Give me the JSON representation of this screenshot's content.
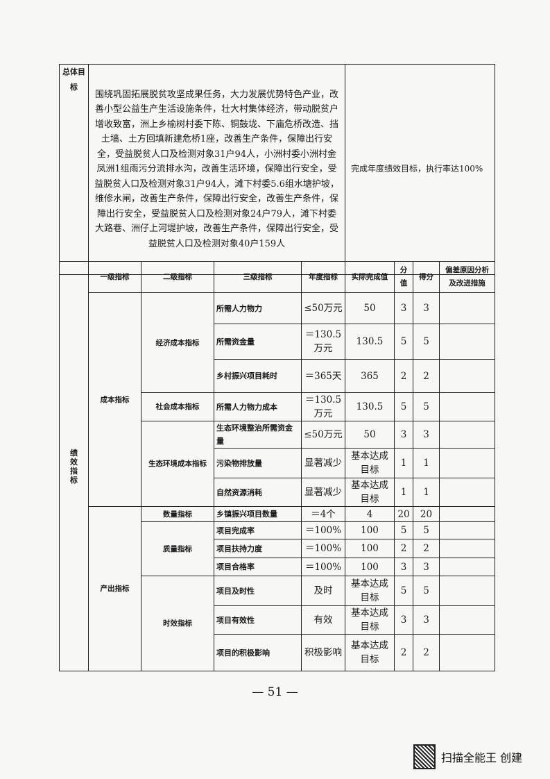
{
  "overall_goal": {
    "label": "总体目标",
    "text": "围绕巩固拓展脱贫攻坚成果任务，大力发展优势特色产业，改善小型公益生产生活设施条件，壮大村集体经济，带动脱贫户增收致富，洲上乡榆树村委下陈、铜鼓垅、下庙危桥改造、挡土墙、土方回填新建危桥1座，改善生产条件，保障出行安全，受益脱贫人口及检测对象31户94人，小洲村委小洲村金凤洲1组雨污分流排水沟，改善生活环境，保障出行安全，受益脱贫人口及检测对象31户94人，滩下村委5.6组水塘护坡，维修水闸，改善生产条件，保障出行安全，改善生产条件，保障出行安全，受益脱贫人口及检测对象24户79人，滩下村委大路巷、洲仔上河堤护坡，改善生产条件，保障出行安全，受益脱贫人口及检测对象40户159人",
    "annual_target": "完成年度绩效目标，执行率达100%"
  },
  "indicators": {
    "section_label": "绩效指标",
    "headers": [
      "一级指标",
      "二级指标",
      "三级指标",
      "年度指标",
      "实际完成值",
      "分值",
      "得分",
      "偏差原因分析及改进措施"
    ],
    "level1": [
      "成本指标",
      "产出指标"
    ],
    "level2": [
      "经济成本指标",
      "社会成本指标",
      "生态环境成本指标",
      "数量指标",
      "质量指标",
      "时效指标"
    ],
    "rows": [
      {
        "name": "所需人力物力",
        "target": "≤50万元",
        "actual": "50",
        "weight": "3",
        "score": "3"
      },
      {
        "name": "所需资金量",
        "target": "＝130.5万元",
        "actual": "130.5",
        "weight": "5",
        "score": "5"
      },
      {
        "name": "乡村振兴项目耗时",
        "target": "＝365天",
        "actual": "365",
        "weight": "2",
        "score": "2"
      },
      {
        "name": "所需人力物力成本",
        "target": "＝130.5万元",
        "actual": "130.5",
        "weight": "5",
        "score": "5"
      },
      {
        "name": "生态环境整治所需资金量",
        "target": "≤50万元",
        "actual": "50",
        "weight": "3",
        "score": "3"
      },
      {
        "name": "污染物排放量",
        "target": "显著减少",
        "actual": "基本达成目标",
        "weight": "1",
        "score": "1"
      },
      {
        "name": "自然资源消耗",
        "target": "显著减少",
        "actual": "基本达成目标",
        "weight": "1",
        "score": "1"
      },
      {
        "name": "乡镇振兴项目数量",
        "target": "＝4个",
        "actual": "4",
        "weight": "20",
        "score": "20"
      },
      {
        "name": "项目完成率",
        "target": "＝100%",
        "actual": "100",
        "weight": "5",
        "score": "5"
      },
      {
        "name": "项目扶持力度",
        "target": "＝100%",
        "actual": "100",
        "weight": "2",
        "score": "2"
      },
      {
        "name": "项目合格率",
        "target": "＝100%",
        "actual": "100",
        "weight": "3",
        "score": "3"
      },
      {
        "name": "项目及时性",
        "target": "及时",
        "actual": "基本达成目标",
        "weight": "5",
        "score": "5"
      },
      {
        "name": "项目有效性",
        "target": "有效",
        "actual": "基本达成目标",
        "weight": "3",
        "score": "3"
      },
      {
        "name": "项目的积极影响",
        "target": "积极影响",
        "actual": "基本达成目标",
        "weight": "2",
        "score": "2"
      }
    ]
  },
  "page_number": "— 51 —",
  "watermark": {
    "text": "扫描全能王 创建",
    "icon": "qr-code-icon"
  }
}
